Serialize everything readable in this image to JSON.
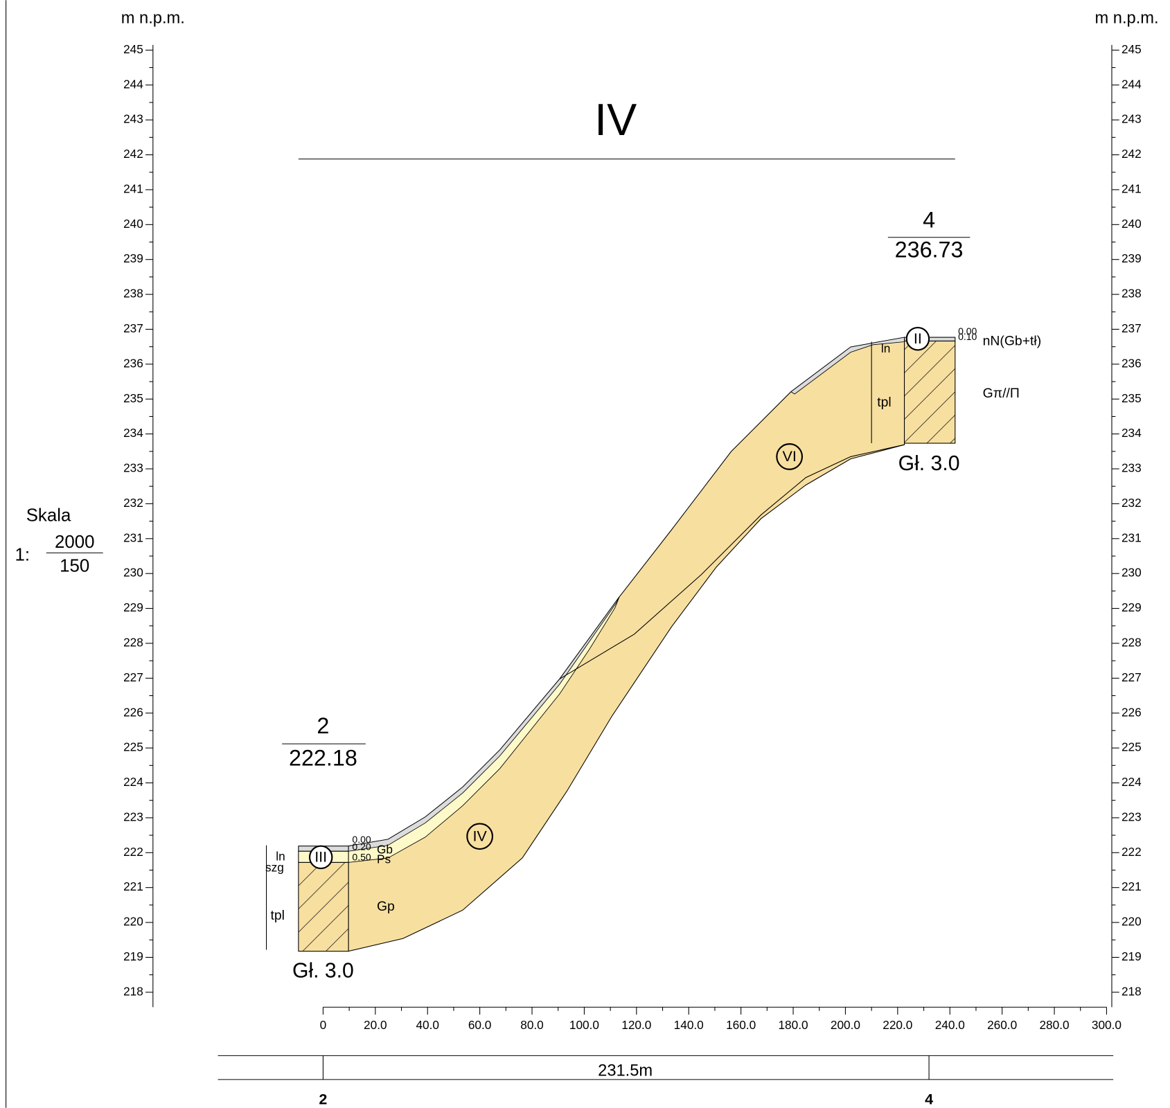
{
  "title": "IV",
  "axes": {
    "left": {
      "unit": "m n.p.m.",
      "ticks": [
        245,
        244,
        243,
        242,
        241,
        240,
        239,
        238,
        237,
        236,
        235,
        234,
        233,
        232,
        231,
        230,
        229,
        228,
        227,
        226,
        225,
        224,
        223,
        222,
        221,
        220,
        219,
        218
      ]
    },
    "right": {
      "unit": "m n.p.m.",
      "ticks": [
        245,
        244,
        243,
        242,
        241,
        240,
        239,
        238,
        237,
        236,
        235,
        234,
        233,
        232,
        231,
        230,
        229,
        228,
        227,
        226,
        225,
        224,
        223,
        222,
        221,
        220,
        219,
        218
      ]
    },
    "distance": {
      "ticks": [
        {
          "value": 0,
          "label": "0"
        },
        {
          "value": 20,
          "label": "20.0"
        },
        {
          "value": 40,
          "label": "40.0"
        },
        {
          "value": 60,
          "label": "60.0"
        },
        {
          "value": 80,
          "label": "80.0"
        },
        {
          "value": 100,
          "label": "100.0"
        },
        {
          "value": 120,
          "label": "120.0"
        },
        {
          "value": 140,
          "label": "140.0"
        },
        {
          "value": 160,
          "label": "160.0"
        },
        {
          "value": 180,
          "label": "180.0"
        },
        {
          "value": 200,
          "label": "200.0"
        },
        {
          "value": 220,
          "label": "220.0"
        },
        {
          "value": 240,
          "label": "240.0"
        },
        {
          "value": 260,
          "label": "260.0"
        },
        {
          "value": 280,
          "label": "280.0"
        },
        {
          "value": 300,
          "label": "300.0"
        }
      ]
    }
  },
  "scale": {
    "label": "Skala",
    "prefix": "1:",
    "horizontal": "2000",
    "vertical": "150"
  },
  "boreholes": [
    {
      "number": "2",
      "elevation": "222.18",
      "depth": "Gł. 3.0",
      "zone": "III",
      "depths": [
        "0.00",
        "0.20",
        "0.50"
      ],
      "soils": [
        "Gb",
        "Ps",
        "Gp"
      ],
      "strata": [
        "ln",
        "szg",
        "tpl"
      ]
    },
    {
      "number": "4",
      "elevation": "236.73",
      "depth": "Gł. 3.0",
      "zone": "II",
      "depths": [
        "0.00",
        "0.10"
      ],
      "soils": [
        "nN(Gb+tł)",
        "Gπ//Π"
      ],
      "strata": [
        "ln",
        "tpl"
      ]
    }
  ],
  "zones": [
    "IV",
    "VI"
  ],
  "section": {
    "length": "231.5m",
    "start": "2",
    "end": "4"
  }
}
